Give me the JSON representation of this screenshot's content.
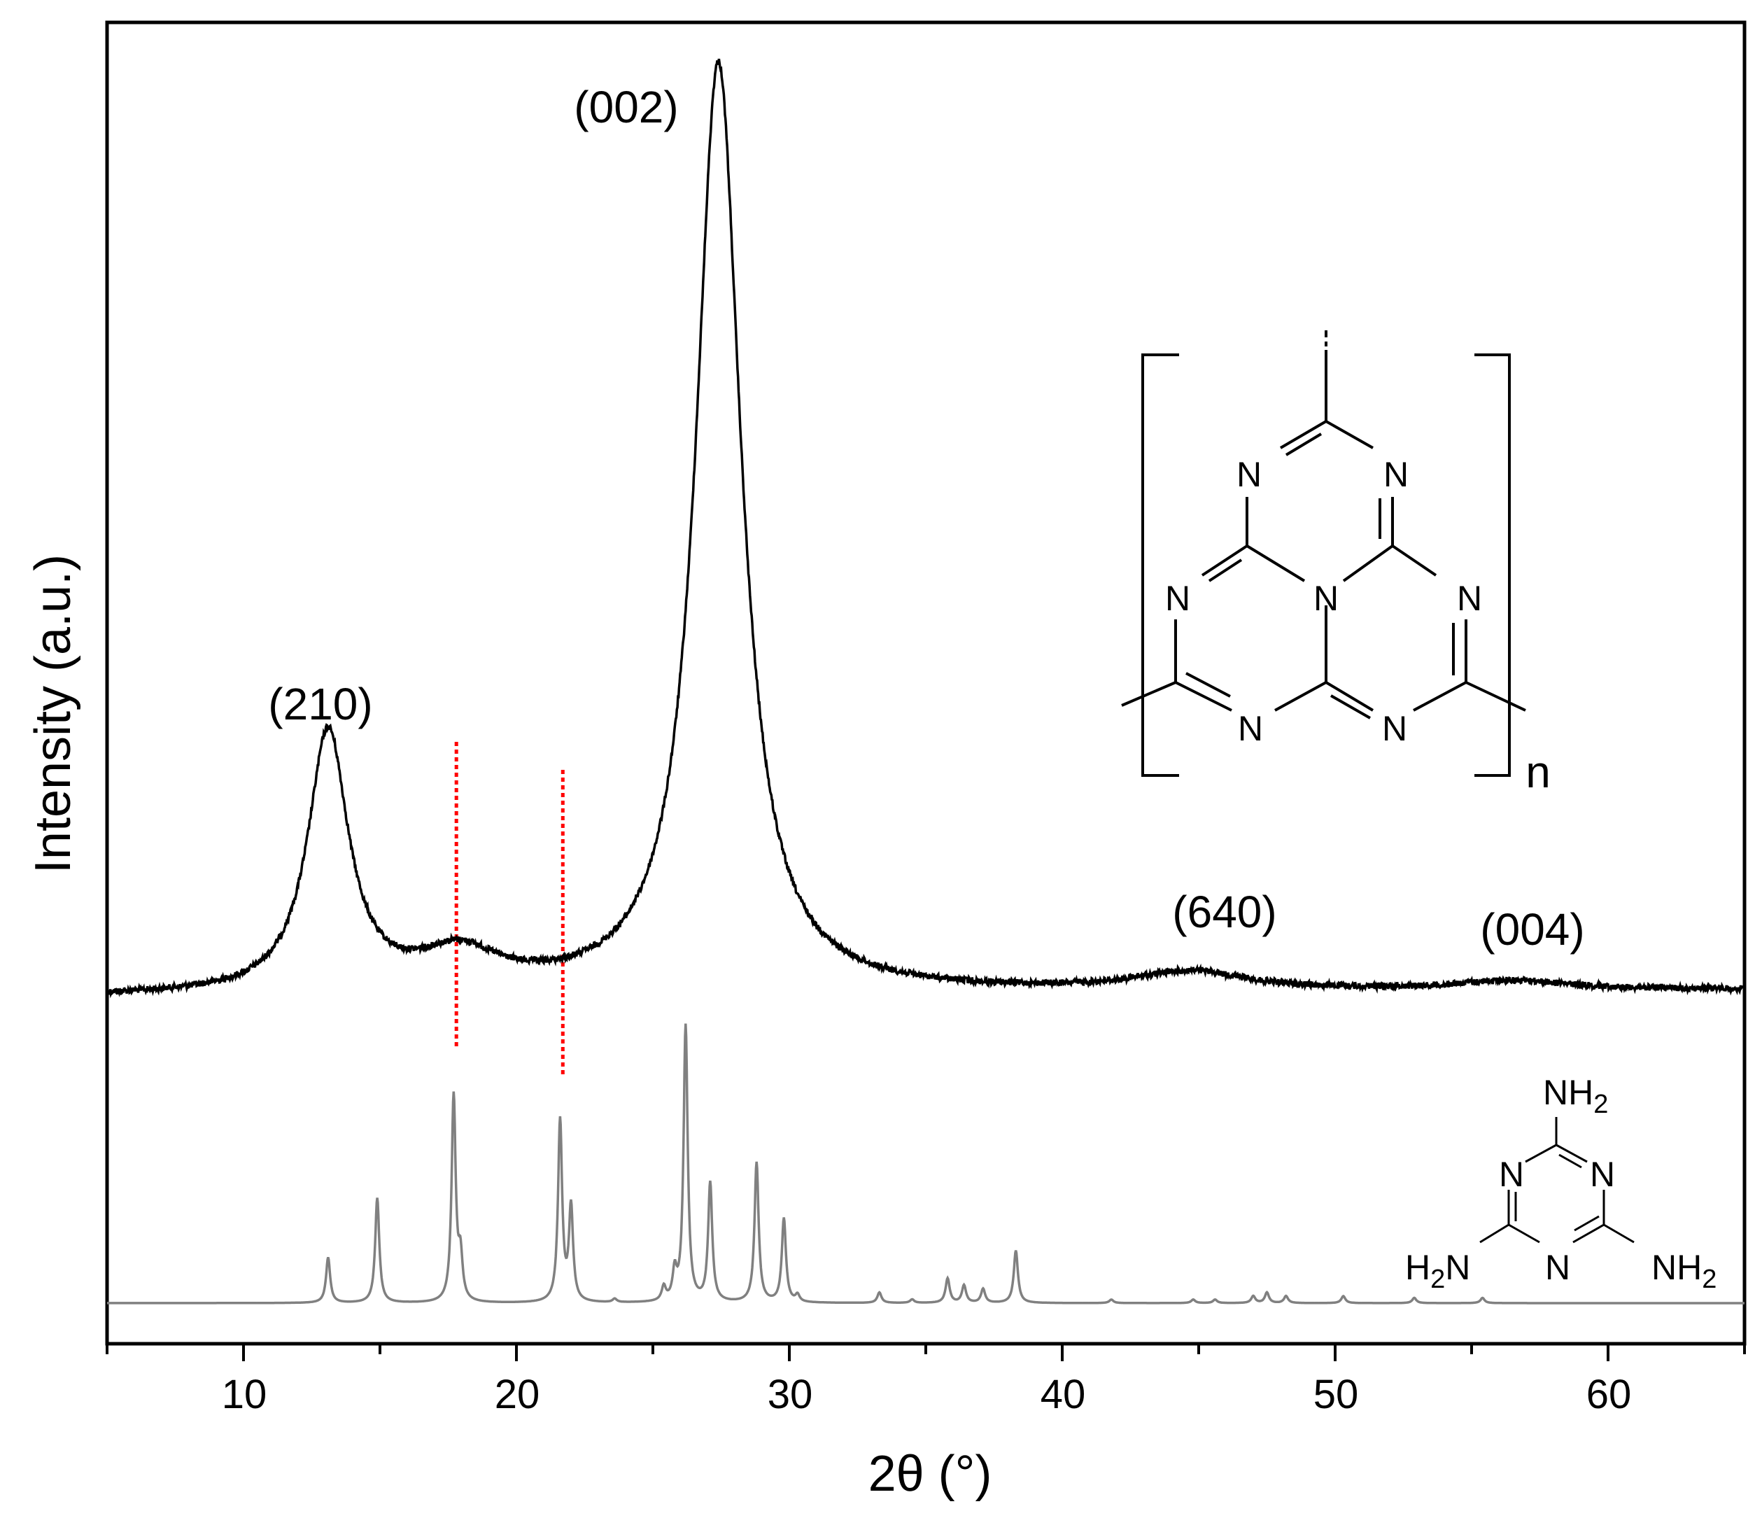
{
  "chart_data": {
    "type": "line",
    "xlabel": "2θ (°)",
    "ylabel": "Intensity (a.u.)",
    "xlim": [
      5,
      65
    ],
    "xticks": [
      10,
      20,
      30,
      40,
      50,
      60
    ],
    "xtick_labels": [
      "10",
      "20",
      "30",
      "40",
      "50",
      "60"
    ],
    "y_ticks_shown": false,
    "series": [
      {
        "color": "#000000",
        "description_peaks": [
          {
            "x": 13.1,
            "height": 0.28,
            "width": 0.9,
            "label": "(210)"
          },
          {
            "x": 17.9,
            "height": 0.04,
            "width": 1.8,
            "label": ""
          },
          {
            "x": 27.4,
            "height": 1.0,
            "width": 1.0,
            "label": "(002)"
          },
          {
            "x": 44.7,
            "height": 0.02,
            "width": 2.5,
            "label": "(640)"
          },
          {
            "x": 56.5,
            "height": 0.01,
            "width": 2.5,
            "label": "(004)"
          }
        ]
      },
      {
        "color": "#808080",
        "description_peaks": [
          {
            "x": 13.1,
            "height": 0.13
          },
          {
            "x": 14.9,
            "height": 0.3
          },
          {
            "x": 17.7,
            "height": 0.59
          },
          {
            "x": 17.95,
            "height": 0.12
          },
          {
            "x": 21.6,
            "height": 0.52
          },
          {
            "x": 22.0,
            "height": 0.27
          },
          {
            "x": 23.6,
            "height": 0.01
          },
          {
            "x": 25.4,
            "height": 0.04
          },
          {
            "x": 25.8,
            "height": 0.08
          },
          {
            "x": 26.2,
            "height": 0.79
          },
          {
            "x": 27.1,
            "height": 0.34
          },
          {
            "x": 28.8,
            "height": 0.4
          },
          {
            "x": 29.8,
            "height": 0.24
          },
          {
            "x": 30.3,
            "height": 0.02
          },
          {
            "x": 33.3,
            "height": 0.03
          },
          {
            "x": 34.5,
            "height": 0.01
          },
          {
            "x": 35.8,
            "height": 0.07
          },
          {
            "x": 36.4,
            "height": 0.05
          },
          {
            "x": 37.1,
            "height": 0.04
          },
          {
            "x": 38.3,
            "height": 0.15
          },
          {
            "x": 41.8,
            "height": 0.01
          },
          {
            "x": 44.8,
            "height": 0.01
          },
          {
            "x": 45.6,
            "height": 0.01
          },
          {
            "x": 47.0,
            "height": 0.02
          },
          {
            "x": 47.5,
            "height": 0.03
          },
          {
            "x": 48.2,
            "height": 0.02
          },
          {
            "x": 50.3,
            "height": 0.02
          },
          {
            "x": 52.9,
            "height": 0.015
          },
          {
            "x": 55.4,
            "height": 0.015
          }
        ]
      }
    ],
    "reference_lines": [
      {
        "x": 17.8,
        "color": "#ff0000",
        "style": "dotted"
      },
      {
        "x": 21.7,
        "color": "#ff0000",
        "style": "dotted"
      }
    ],
    "annotations": [
      "(002)",
      "(210)",
      "(640)",
      "(004)"
    ],
    "structure_text": {
      "polymer_atoms": [
        "N",
        "N",
        "N",
        "N",
        "N",
        "N",
        "N"
      ],
      "subscript_n": "n",
      "melamine_amine_top": "NH",
      "melamine_amine_left": "HN",
      "melamine_amine_right": "NH",
      "melamine_sub": "2",
      "melamine_ring_atoms": [
        "N",
        "N",
        "N"
      ]
    }
  }
}
